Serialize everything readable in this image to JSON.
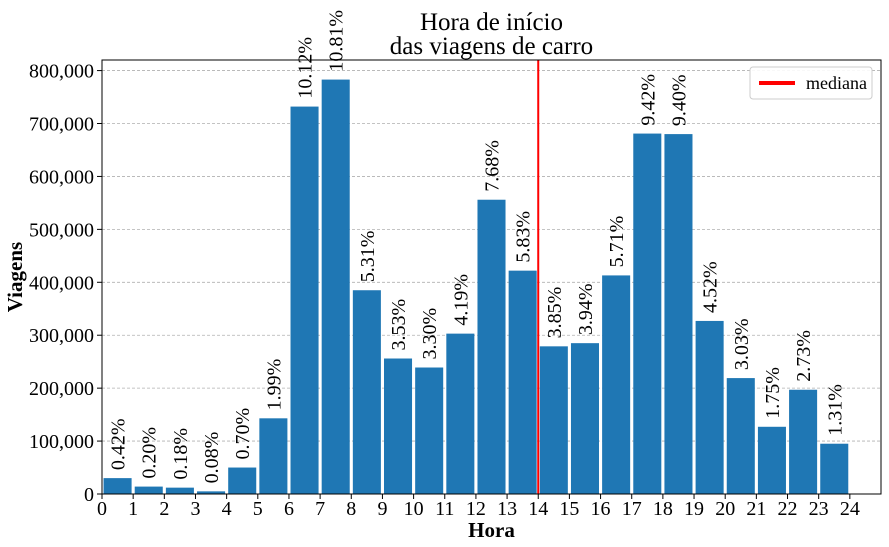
{
  "chart_data": {
    "type": "bar",
    "title_lines": [
      "Hora de início",
      "das viagens de carro"
    ],
    "xlabel": "Hora",
    "ylabel": "Viagens",
    "x_ticks": [
      "0",
      "1",
      "2",
      "3",
      "4",
      "5",
      "6",
      "7",
      "8",
      "9",
      "10",
      "11",
      "12",
      "13",
      "14",
      "15",
      "16",
      "17",
      "18",
      "19",
      "20",
      "21",
      "22",
      "23",
      "24"
    ],
    "y_ticks": [
      "0",
      "100,000",
      "200,000",
      "300,000",
      "400,000",
      "500,000",
      "600,000",
      "700,000",
      "800,000"
    ],
    "y_tick_values": [
      0,
      100000,
      200000,
      300000,
      400000,
      500000,
      600000,
      700000,
      800000
    ],
    "ylim": [
      0,
      820000
    ],
    "xlim": [
      0,
      25
    ],
    "categories": [
      0,
      1,
      2,
      3,
      4,
      5,
      6,
      7,
      8,
      9,
      10,
      11,
      12,
      13,
      14,
      15,
      16,
      17,
      18,
      19,
      20,
      21,
      22,
      23
    ],
    "values": [
      30000,
      14000,
      12000,
      5000,
      50000,
      143000,
      732000,
      783000,
      385000,
      256000,
      239000,
      303000,
      556000,
      422000,
      279000,
      285000,
      413000,
      681000,
      680000,
      327000,
      219000,
      127000,
      197000,
      95000
    ],
    "percent_labels": [
      "0.42%",
      "0.20%",
      "0.18%",
      "0.08%",
      "0.70%",
      "1.99%",
      "10.12%",
      "10.81%",
      "5.31%",
      "3.53%",
      "3.30%",
      "4.19%",
      "7.68%",
      "5.83%",
      "3.85%",
      "3.94%",
      "5.71%",
      "9.42%",
      "9.40%",
      "4.52%",
      "3.03%",
      "1.75%",
      "2.73%",
      "1.31%"
    ],
    "bar_color": "#1f77b4",
    "median": 14,
    "median_color": "#ff0000",
    "legend": {
      "label": "mediana",
      "placement": "top-right"
    },
    "grid": {
      "y": true,
      "x": false,
      "style": "dashed"
    }
  }
}
